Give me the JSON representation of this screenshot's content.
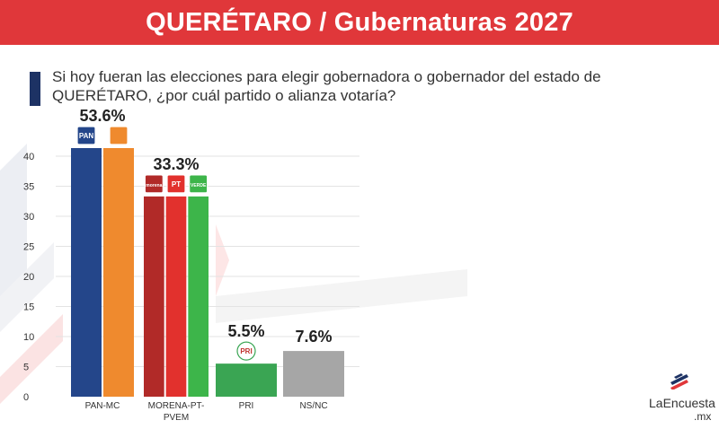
{
  "header": {
    "title": "QUERÉTARO / Gubernaturas 2027"
  },
  "question": "Si hoy fueran las elecciones para elegir gobernadora o gobernador del estado de QUERÉTARO, ¿por cuál partido o alianza votaría?",
  "brand": {
    "name": "LaEncuesta",
    "tld": ".mx"
  },
  "colors": {
    "header": "#e0373a",
    "accent_bar": "#1d3264"
  },
  "chart_data": {
    "type": "bar",
    "categories": [
      "PAN-MC",
      "MORENA-PT-PVEM",
      "PRI",
      "NS/NC"
    ],
    "values": [
      53.6,
      33.3,
      5.5,
      7.6
    ],
    "value_labels": [
      "53.6%",
      "33.3%",
      "5.5%",
      "7.6%"
    ],
    "category_labels": [
      [
        "PAN-MC"
      ],
      [
        "MORENA-PT-",
        "PVEM"
      ],
      [
        "PRI"
      ],
      [
        "NS/NC"
      ]
    ],
    "yticks": [
      0,
      5,
      10,
      15,
      20,
      25,
      30,
      35,
      40
    ],
    "grid": true,
    "party_segments": [
      [
        {
          "party": "PAN",
          "color": "#24468a",
          "icon": "pan-logo-icon",
          "icon_text": "PAN"
        },
        {
          "party": "MC",
          "color": "#ef8a2e",
          "icon": "mc-logo-icon",
          "icon_text": ""
        }
      ],
      [
        {
          "party": "MORENA",
          "color": "#b12a28",
          "icon": "morena-logo-icon",
          "icon_text": "morena"
        },
        {
          "party": "PT",
          "color": "#e2312d",
          "icon": "pt-logo-icon",
          "icon_text": "PT"
        },
        {
          "party": "PVEM",
          "color": "#3db54a",
          "icon": "pvem-logo-icon",
          "icon_text": "VERDE"
        }
      ],
      [
        {
          "party": "PRI",
          "color": "#3aa553",
          "icon": "pri-logo-icon",
          "icon_text": "PRI"
        }
      ],
      [
        {
          "party": "NS/NC",
          "color": "#a6a6a6",
          "icon": "",
          "icon_text": ""
        }
      ]
    ]
  }
}
